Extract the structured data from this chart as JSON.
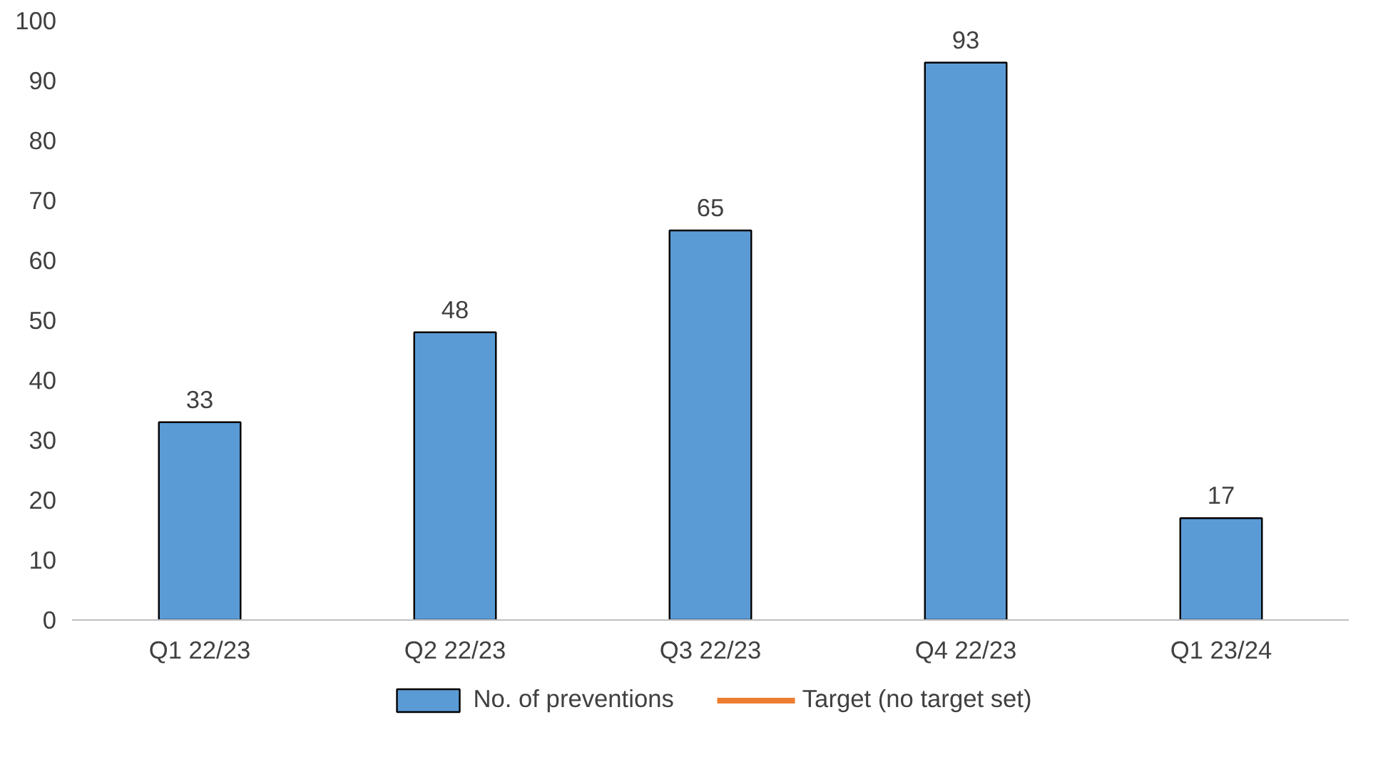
{
  "chart_data": {
    "type": "bar",
    "categories": [
      "Q1 22/23",
      "Q2 22/23",
      "Q3 22/23",
      "Q4 22/23",
      "Q1 23/24"
    ],
    "series": [
      {
        "name": "No. of preventions",
        "color": "#5b9bd5",
        "values": [
          33,
          48,
          65,
          93,
          17
        ]
      },
      {
        "name": "Target (no target set)",
        "type": "line",
        "color": "#ed7d31",
        "values": [
          null,
          null,
          null,
          null,
          null
        ]
      }
    ],
    "ylim": [
      0,
      100
    ],
    "yticks": [
      0,
      10,
      20,
      30,
      40,
      50,
      60,
      70,
      80,
      90,
      100
    ],
    "data_labels": true,
    "legend": "bottom",
    "grid": false
  }
}
